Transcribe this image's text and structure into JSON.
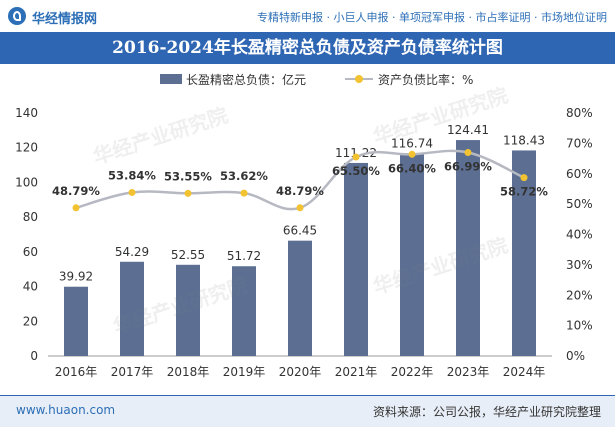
{
  "header": {
    "logo_text": "华经情报网",
    "tags": "专精特新申报 · 小巨人申报 · 单项冠军申报 · 市占率证明 · 市场地位证明",
    "brand_color": "#2f66b3"
  },
  "footer": {
    "url": "www.huaon.com",
    "source": "资料来源：公司公报，华经产业研究院整理"
  },
  "watermark": "华经产业研究院",
  "colors": {
    "bar": "#5c6f93",
    "line": "#b6b9c2",
    "dot": "#f2c230"
  },
  "chart_data": {
    "type": "bar",
    "title": "2016-2024年长盈精密总负债及资产负债率统计图",
    "categories": [
      "2016年",
      "2017年",
      "2018年",
      "2019年",
      "2020年",
      "2021年",
      "2022年",
      "2023年",
      "2024年"
    ],
    "series": [
      {
        "name": "长盈精密总负债：亿元",
        "type": "bar",
        "axis": "left",
        "values": [
          39.92,
          54.29,
          52.55,
          51.72,
          66.45,
          111.22,
          116.74,
          124.41,
          118.43
        ],
        "labels": [
          "39.92",
          "54.29",
          "52.55",
          "51.72",
          "66.45",
          "111.22",
          "116.74",
          "124.41",
          "118.43"
        ]
      },
      {
        "name": "资产负债比率：%",
        "type": "line",
        "axis": "right",
        "values": [
          48.79,
          53.84,
          53.55,
          53.62,
          48.79,
          65.5,
          66.4,
          66.99,
          58.72
        ],
        "labels": [
          "48.79%",
          "53.84%",
          "53.55%",
          "53.62%",
          "48.79%",
          "65.50%",
          "66.40%",
          "66.99%",
          "58.72%"
        ]
      }
    ],
    "y_left": {
      "ylim": [
        0,
        140
      ],
      "ticks": [
        "0",
        "20",
        "40",
        "60",
        "80",
        "100",
        "120",
        "140"
      ]
    },
    "y_right": {
      "ylim": [
        0,
        80
      ],
      "ticks": [
        "0%",
        "10%",
        "20%",
        "30%",
        "40%",
        "50%",
        "60%",
        "70%",
        "80%"
      ]
    },
    "grid": false,
    "legend": "top-center"
  }
}
